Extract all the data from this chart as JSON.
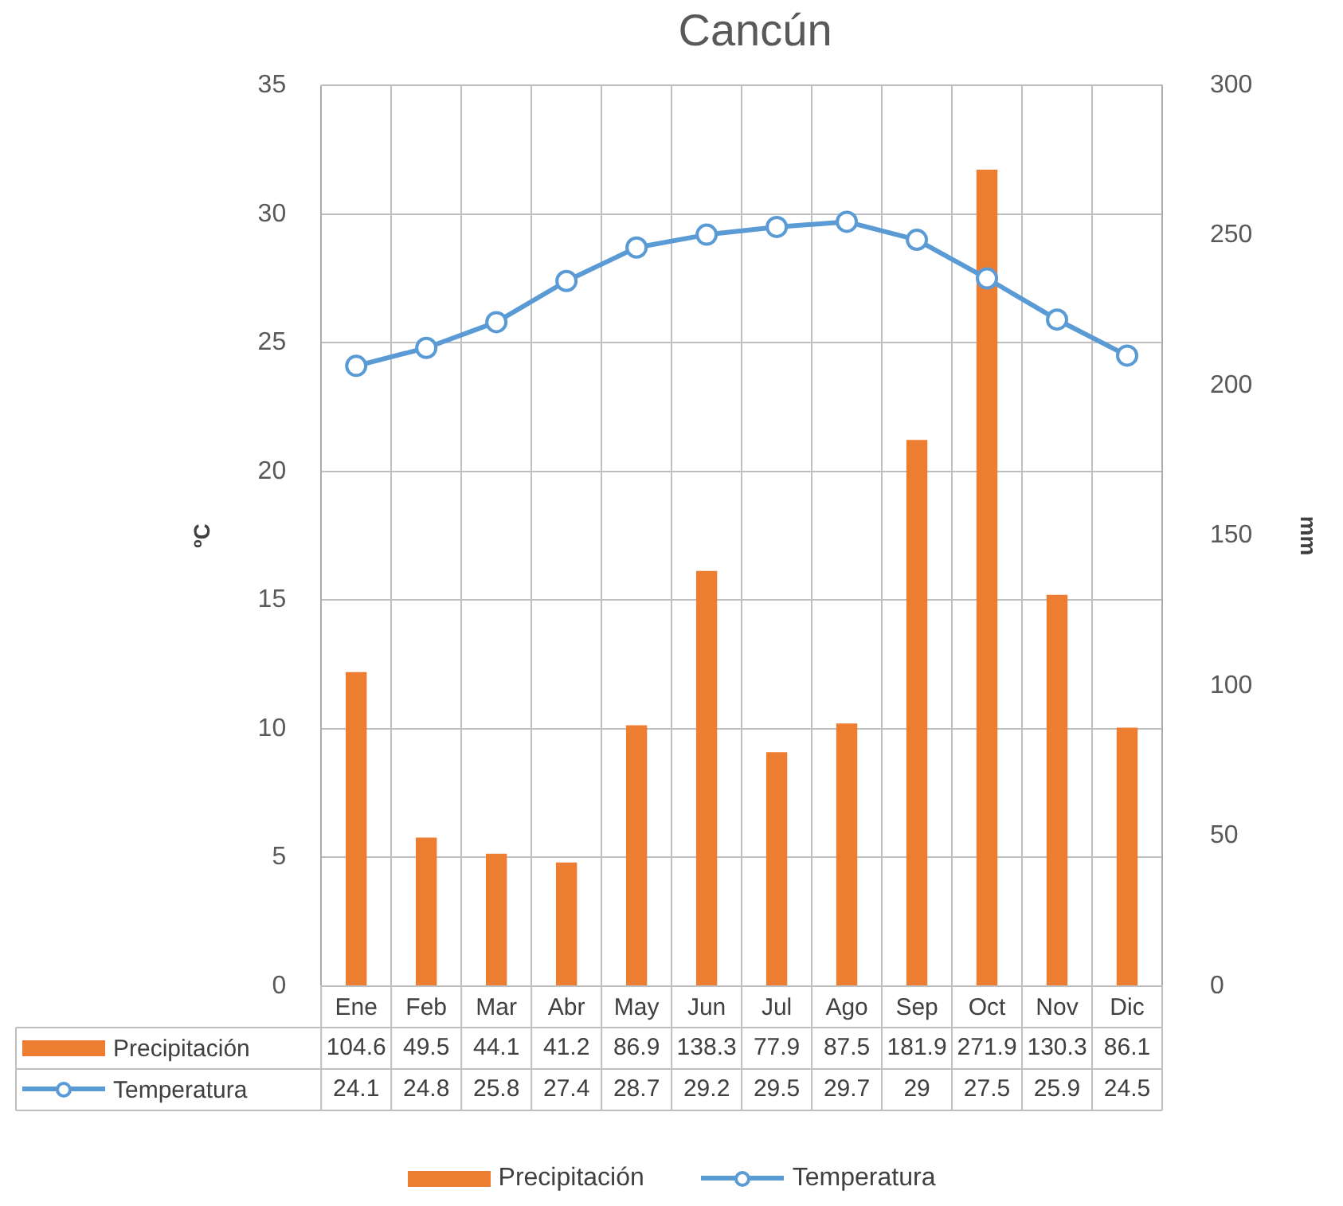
{
  "chart_data": {
    "type": "bar",
    "title": "Cancún",
    "ylabel": "ºC",
    "y2label": "mm",
    "categories": [
      "Ene",
      "Feb",
      "Mar",
      "Abr",
      "May",
      "Jun",
      "Jul",
      "Ago",
      "Sep",
      "Oct",
      "Nov",
      "Dic"
    ],
    "series": [
      {
        "name": "Precipitación",
        "axis": "y2",
        "color": "#ed7d31",
        "values": [
          104.6,
          49.5,
          44.1,
          41.2,
          86.9,
          138.3,
          77.9,
          87.5,
          181.9,
          271.9,
          130.3,
          86.1
        ]
      },
      {
        "name": "Temperatura",
        "type": "line",
        "axis": "y",
        "color": "#5b9bd5",
        "values": [
          24.1,
          24.8,
          25.8,
          27.4,
          28.7,
          29.2,
          29.5,
          29.7,
          29,
          27.5,
          25.9,
          24.5
        ]
      }
    ],
    "ylim": [
      0,
      35
    ],
    "yticks": [
      0,
      5,
      10,
      15,
      20,
      25,
      30,
      35
    ],
    "y2lim": [
      0,
      300
    ],
    "y2ticks": [
      0,
      50,
      100,
      150,
      200,
      250,
      300
    ],
    "grid": true,
    "legend": "bottom",
    "marker": "circle",
    "line_style": "solid",
    "data_labels": true
  }
}
